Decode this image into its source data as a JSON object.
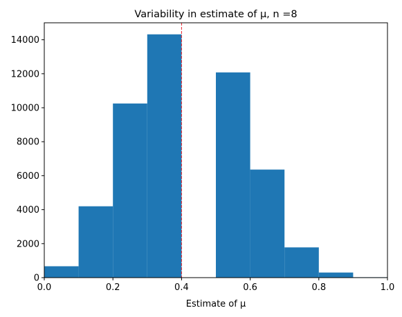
{
  "chart_data": {
    "type": "bar",
    "title": "Variability in estimate of μ, n =8",
    "xlabel": "Estimate of μ",
    "ylabel": "",
    "xlim": [
      0.0,
      1.0
    ],
    "ylim": [
      0,
      15000
    ],
    "x_ticks": [
      "0.0",
      "0.2",
      "0.4",
      "0.6",
      "0.8",
      "1.0"
    ],
    "y_ticks": [
      "0",
      "2000",
      "4000",
      "6000",
      "8000",
      "10000",
      "12000",
      "14000"
    ],
    "bins": [
      {
        "start": 0.0,
        "end": 0.1,
        "count": 670
      },
      {
        "start": 0.1,
        "end": 0.2,
        "count": 4200
      },
      {
        "start": 0.2,
        "end": 0.3,
        "count": 10250
      },
      {
        "start": 0.3,
        "end": 0.4,
        "count": 14320
      },
      {
        "start": 0.4,
        "end": 0.5,
        "count": 0
      },
      {
        "start": 0.5,
        "end": 0.6,
        "count": 12080
      },
      {
        "start": 0.6,
        "end": 0.7,
        "count": 6360
      },
      {
        "start": 0.7,
        "end": 0.8,
        "count": 1780
      },
      {
        "start": 0.8,
        "end": 0.9,
        "count": 300
      },
      {
        "start": 0.9,
        "end": 1.0,
        "count": 25
      }
    ],
    "reference_line": {
      "x": 0.4,
      "style": "dashed",
      "color": "#e8202a"
    },
    "bar_color": "#1f77b4",
    "grid": false,
    "legend": "none"
  }
}
